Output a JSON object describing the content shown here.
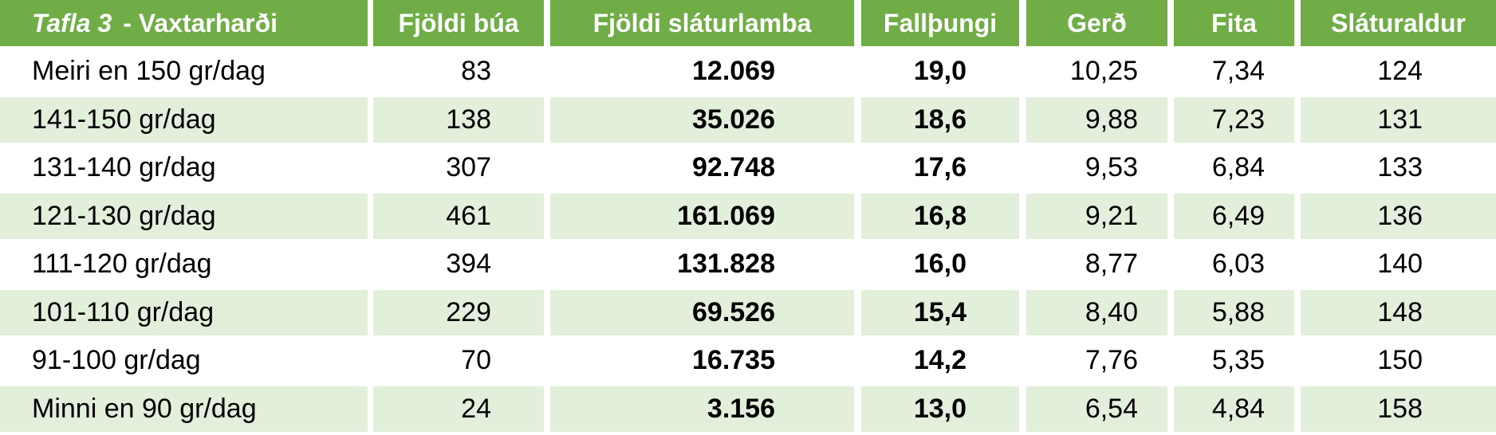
{
  "header": {
    "title_italic": "Tafla 3",
    "title": "- Vaxtarharði",
    "columns": [
      "Fjöldi búa",
      "Fjöldi sláturlamba",
      "Fallþungi",
      "Gerð",
      "Fita",
      "Sláturaldur"
    ]
  },
  "rows": [
    {
      "label": "Meiri en 150 gr/dag",
      "values": [
        "83",
        "12.069",
        "19,0",
        "10,25",
        "7,34",
        "124"
      ]
    },
    {
      "label": "141-150 gr/dag",
      "values": [
        "138",
        "35.026",
        "18,6",
        "9,88",
        "7,23",
        "131"
      ]
    },
    {
      "label": "131-140 gr/dag",
      "values": [
        "307",
        "92.748",
        "17,6",
        "9,53",
        "6,84",
        "133"
      ]
    },
    {
      "label": "121-130 gr/dag",
      "values": [
        "461",
        "161.069",
        "16,8",
        "9,21",
        "6,49",
        "136"
      ]
    },
    {
      "label": "111-120 gr/dag",
      "values": [
        "394",
        "131.828",
        "16,0",
        "8,77",
        "6,03",
        "140"
      ]
    },
    {
      "label": "101-110 gr/dag",
      "values": [
        "229",
        "69.526",
        "15,4",
        "8,40",
        "5,88",
        "148"
      ]
    },
    {
      "label": "91-100 gr/dag",
      "values": [
        "70",
        "16.735",
        "14,2",
        "7,76",
        "5,35",
        "150"
      ]
    },
    {
      "label": "Minni en 90 gr/dag",
      "values": [
        "24",
        "3.156",
        "13,0",
        "6,54",
        "4,84",
        "158"
      ]
    }
  ]
}
